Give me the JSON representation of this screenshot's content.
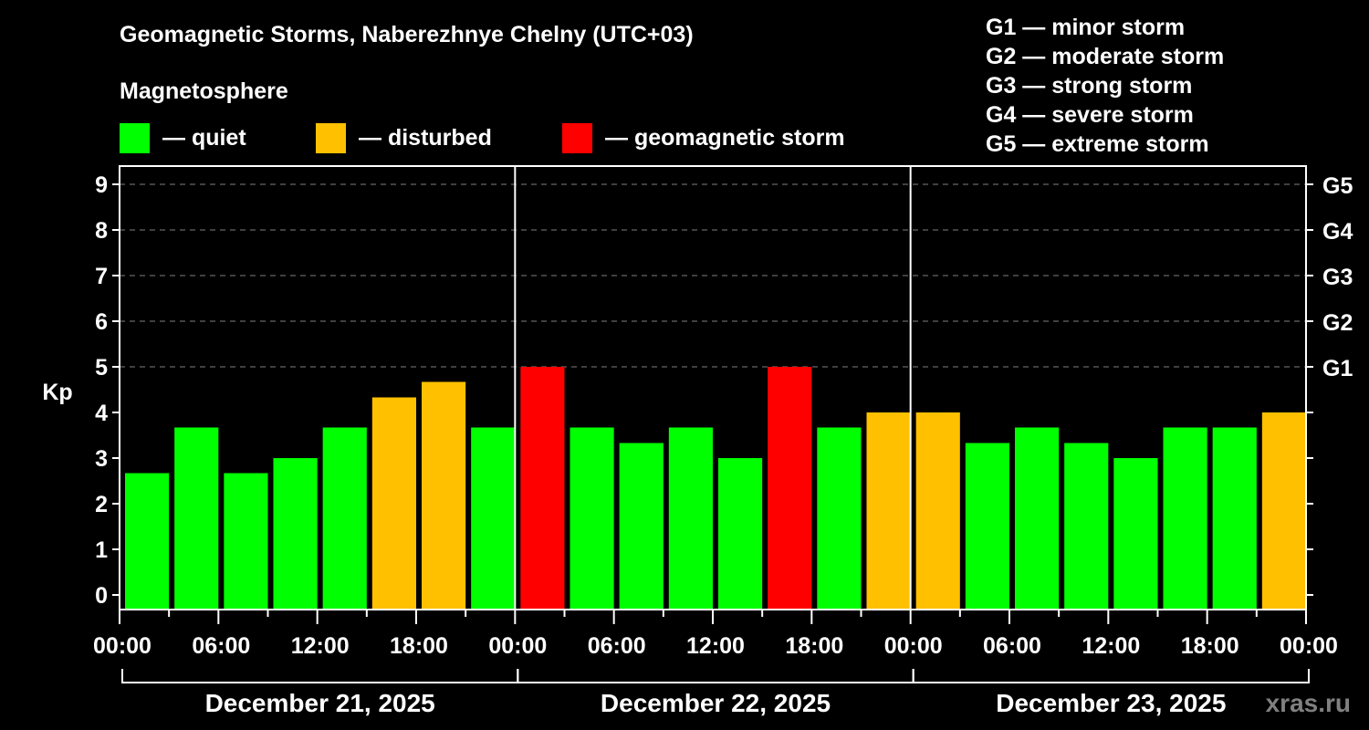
{
  "header": {
    "title": "Geomagnetic Storms, Naberezhnye Chelny (UTC+03)",
    "subtitle": "Magnetosphere",
    "legend": [
      {
        "label": "— quiet",
        "color": "#00ff00"
      },
      {
        "label": "— disturbed",
        "color": "#ffc000"
      },
      {
        "label": "— geomagnetic storm",
        "color": "#ff0000"
      }
    ],
    "g_scale": [
      "G1 — minor storm",
      "G2 — moderate storm",
      "G3 — strong storm",
      "G4 — severe storm",
      "G5 — extreme storm"
    ]
  },
  "watermark": "xras.ru",
  "colors": {
    "quiet": "#00ff00",
    "disturbed": "#ffc000",
    "storm": "#ff0000",
    "grid": "#808080",
    "axis": "#ffffff"
  },
  "chart_data": {
    "type": "bar",
    "title": "Geomagnetic Storms, Naberezhnye Chelny (UTC+03)",
    "xlabel": "",
    "ylabel": "Kp",
    "ylim": [
      0,
      9
    ],
    "yticks": [
      0,
      1,
      2,
      3,
      4,
      5,
      6,
      7,
      8,
      9
    ],
    "right_axis_labels": [
      {
        "kp": 5,
        "label": "G1"
      },
      {
        "kp": 6,
        "label": "G2"
      },
      {
        "kp": 7,
        "label": "G3"
      },
      {
        "kp": 8,
        "label": "G4"
      },
      {
        "kp": 9,
        "label": "G5"
      }
    ],
    "grid": "dashed horizontal at Kp 5-9",
    "days": [
      "December 21, 2025",
      "December 22, 2025",
      "December 23, 2025"
    ],
    "xtick_labels": [
      "00:00",
      "06:00",
      "12:00",
      "18:00",
      "00:00",
      "06:00",
      "12:00",
      "18:00",
      "00:00",
      "06:00",
      "12:00",
      "18:00",
      "00:00"
    ],
    "interval_hours": 3,
    "categories": [
      "Dec 21 00-03",
      "Dec 21 03-06",
      "Dec 21 06-09",
      "Dec 21 09-12",
      "Dec 21 12-15",
      "Dec 21 15-18",
      "Dec 21 18-21",
      "Dec 21 21-24",
      "Dec 22 00-03",
      "Dec 22 03-06",
      "Dec 22 06-09",
      "Dec 22 09-12",
      "Dec 22 12-15",
      "Dec 22 15-18",
      "Dec 22 18-21",
      "Dec 22 21-24",
      "Dec 23 00-03",
      "Dec 23 03-06",
      "Dec 23 06-09",
      "Dec 23 09-12",
      "Dec 23 12-15",
      "Dec 23 15-18",
      "Dec 23 18-21",
      "Dec 23 21-24"
    ],
    "values": [
      2.67,
      3.67,
      2.67,
      3.0,
      3.67,
      4.33,
      4.67,
      3.67,
      5.0,
      3.67,
      3.33,
      3.67,
      3.0,
      5.0,
      3.67,
      4.0,
      4.0,
      3.33,
      3.67,
      3.33,
      3.0,
      3.67,
      3.67,
      4.0
    ],
    "status": [
      "quiet",
      "quiet",
      "quiet",
      "quiet",
      "quiet",
      "disturbed",
      "disturbed",
      "quiet",
      "storm",
      "quiet",
      "quiet",
      "quiet",
      "quiet",
      "storm",
      "quiet",
      "disturbed",
      "disturbed",
      "quiet",
      "quiet",
      "quiet",
      "quiet",
      "quiet",
      "quiet",
      "disturbed"
    ],
    "legend_position": "top"
  }
}
